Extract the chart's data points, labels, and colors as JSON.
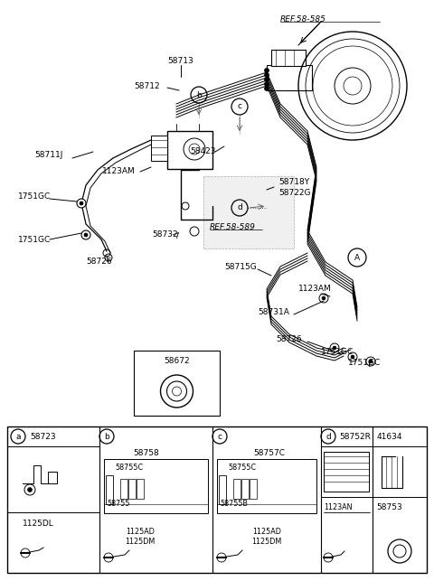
{
  "fig_width": 4.8,
  "fig_height": 6.43,
  "bg_color": "#ffffff",
  "lc": "#000000",
  "gray": "#aaaaaa",
  "labels": {
    "ref585": "REF.58-585",
    "ref589": "REF.58-589",
    "58713": "58713",
    "58712": "58712",
    "58711J": "58711J",
    "1123AM_l": "1123AM",
    "1751GC_a": "1751GC",
    "1751GC_b": "1751GC",
    "58732": "58732",
    "58726_l": "58726",
    "58423": "58423",
    "58718Y": "58718Y",
    "58722G": "58722G",
    "58715G": "58715G",
    "58731A": "58731A",
    "58726_r": "58726",
    "1751GC_c": "1751GC",
    "1751GC_d": "1751GC",
    "1123AM_r": "1123AM",
    "58672": "58672"
  },
  "tbl": {
    "a_num": "58723",
    "a_mid": "1125DL",
    "b_num": "58758",
    "b_in1": "58755C",
    "b_in2": "58755",
    "b_bot": "1125AD\n1125DM",
    "c_num": "58757C",
    "c_in1": "58755C",
    "c_in2": "58755B",
    "c_bot": "1125AD\n1125DM",
    "d_num1": "58752R",
    "d_num2": "41634",
    "d_mid1": "1123AN",
    "d_mid2": "58753"
  },
  "cols": [
    8,
    110,
    235,
    355,
    412,
    472
  ]
}
